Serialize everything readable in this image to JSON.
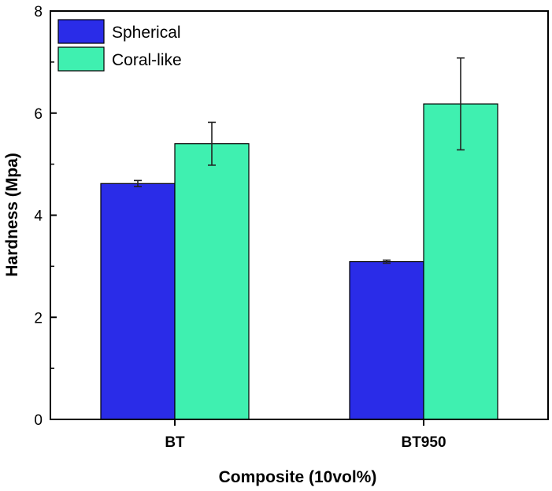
{
  "chart_data": {
    "type": "bar",
    "title": "",
    "xlabel": "Composite (10vol%)",
    "ylabel": "Hardness (Mpa)",
    "ylim": [
      0,
      8
    ],
    "yticks": [
      0,
      2,
      4,
      6,
      8
    ],
    "categories": [
      "BT",
      "BT950"
    ],
    "series": [
      {
        "name": "Spherical",
        "color": "#2a2ce8",
        "values": [
          4.62,
          3.09
        ],
        "errors": [
          0.06,
          0.03
        ]
      },
      {
        "name": "Coral-like",
        "color": "#3ff0b0",
        "values": [
          5.4,
          6.18
        ],
        "errors": [
          0.42,
          0.9
        ]
      }
    ],
    "legend_position": "top-left",
    "grid": false
  }
}
